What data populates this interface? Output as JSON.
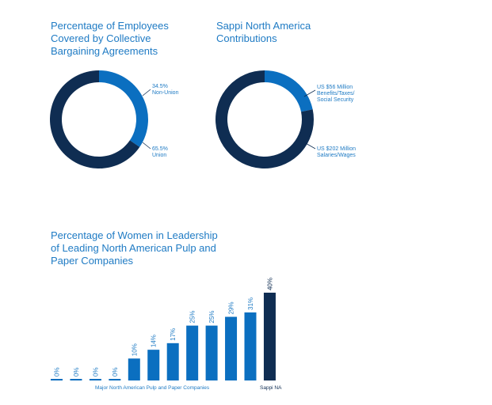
{
  "colors": {
    "dark": "#0f2d52",
    "light": "#0b6fc0",
    "text": "#1f7bc4"
  },
  "chart_data": [
    {
      "type": "pie",
      "title": "Percentage of Employees\nCovered by Collective\nBargaining Agreements",
      "slices": [
        {
          "label_value": "34.5%",
          "label_name": "Non-Union",
          "value": 34.5,
          "color": "#0b6fc0"
        },
        {
          "label_value": "65.5%",
          "label_name": "Union",
          "value": 65.5,
          "color": "#0f2d52"
        }
      ]
    },
    {
      "type": "pie",
      "title": "Sappi North America\nContributions",
      "slices": [
        {
          "label_value": "US $56 Million",
          "label_name": "Benefits/Taxes/\nSocial Security",
          "value": 56,
          "color": "#0b6fc0"
        },
        {
          "label_value": "US $202 Million",
          "label_name": "Salaries/Wages",
          "value": 202,
          "color": "#0f2d52"
        }
      ]
    },
    {
      "type": "bar",
      "title": "Percentage of Women in Leadership\nof Leading North American Pulp and\nPaper Companies",
      "values": [
        0,
        0,
        0,
        0,
        10,
        14,
        17,
        25,
        25,
        29,
        31,
        40
      ],
      "value_labels": [
        "0%",
        "0%",
        "0%",
        "0%",
        "10%",
        "14%",
        "17%",
        "25%",
        "25%",
        "29%",
        "31%",
        "40%"
      ],
      "highlight_index": 11,
      "group_labels": [
        "Major North American Pulp and Paper Companies",
        "Sappi NA"
      ],
      "ylim": [
        0,
        40
      ]
    }
  ]
}
